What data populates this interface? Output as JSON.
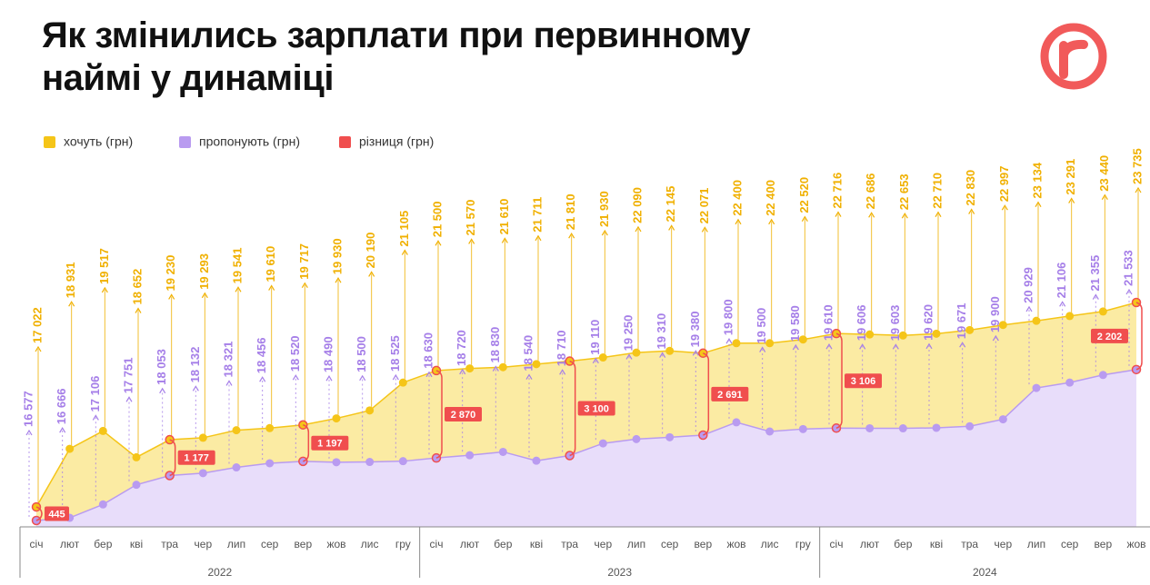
{
  "chart_data": {
    "type": "area",
    "title": "Як змінились зарплати при первинному наймі у динаміці",
    "groups": [
      {
        "label": "2022",
        "categories": [
          "січ",
          "лют",
          "бер",
          "кві",
          "тра",
          "чер",
          "лип",
          "сер",
          "вер",
          "жов",
          "лис",
          "гру"
        ]
      },
      {
        "label": "2023",
        "categories": [
          "січ",
          "лют",
          "бер",
          "кві",
          "тра",
          "чер",
          "лип",
          "сер",
          "вер",
          "жов",
          "лис",
          "гру"
        ]
      },
      {
        "label": "2024",
        "categories": [
          "січ",
          "лют",
          "бер",
          "кві",
          "тра",
          "чер",
          "лип",
          "сер",
          "вер",
          "жов"
        ]
      }
    ],
    "series": [
      {
        "name": "хочуть (грн)",
        "color": "#f5c518",
        "label_color": "#f0b000",
        "fill": "#fbeba3",
        "values": [
          17022,
          18931,
          19517,
          18652,
          19230,
          19293,
          19541,
          19610,
          19717,
          19930,
          20190,
          21105,
          21500,
          21570,
          21610,
          21711,
          21810,
          21930,
          22090,
          22145,
          22071,
          22400,
          22400,
          22520,
          22716,
          22686,
          22653,
          22710,
          22830,
          22997,
          23134,
          23291,
          23440,
          23735
        ],
        "value_labels": [
          "17 022",
          "18 931",
          "19 517",
          "18 652",
          "19 230",
          "19 293",
          "19 541",
          "19 610",
          "19 717",
          "19 930",
          "20 190",
          "21 105",
          "21 500",
          "21 570",
          "21 610",
          "21 711",
          "21 810",
          "21 930",
          "22 090",
          "22 145",
          "22 071",
          "22 400",
          "22 400",
          "22 520",
          "22 716",
          "22 686",
          "22 653",
          "22 710",
          "22 830",
          "22 997",
          "23 134",
          "23 291",
          "23 440",
          "23 735"
        ]
      },
      {
        "name": "пропонують (грн)",
        "color": "#b99bf0",
        "label_color": "#a57ee8",
        "fill": "#e8ddfa",
        "values": [
          16577,
          16666,
          17106,
          17751,
          18053,
          18132,
          18321,
          18456,
          18520,
          18490,
          18500,
          18525,
          18630,
          18720,
          18830,
          18540,
          18710,
          19110,
          19250,
          19310,
          19380,
          19800,
          19500,
          19580,
          19610,
          19606,
          19603,
          19620,
          19671,
          19900,
          20929,
          21106,
          21355,
          21533
        ],
        "value_labels": [
          "16 577",
          "16 666",
          "17 106",
          "17 751",
          "18 053",
          "18 132",
          "18 321",
          "18 456",
          "18 520",
          "18 490",
          "18 500",
          "18 525",
          "18 630",
          "18 720",
          "18 830",
          "18 540",
          "18 710",
          "19 110",
          "19 250",
          "19 310",
          "19 380",
          "19 800",
          "19 500",
          "19 580",
          "19 610",
          "19 606",
          "19 603",
          "19 620",
          "19 671",
          "19 900",
          "20 929",
          "21 106",
          "21 355",
          "21 533"
        ]
      },
      {
        "name": "різниця (грн)",
        "color": "#f04e4e",
        "values": [
          445,
          null,
          null,
          null,
          1177,
          null,
          null,
          null,
          1197,
          null,
          null,
          null,
          2870,
          null,
          null,
          null,
          3100,
          null,
          null,
          null,
          2691,
          null,
          null,
          null,
          3106,
          null,
          null,
          null,
          null,
          null,
          null,
          null,
          null,
          2202
        ],
        "value_labels": [
          "445",
          null,
          null,
          null,
          "1 177",
          null,
          null,
          null,
          "1 197",
          null,
          null,
          null,
          "2 870",
          null,
          null,
          null,
          "3 100",
          null,
          null,
          null,
          "2 691",
          null,
          null,
          null,
          "3 106",
          null,
          null,
          null,
          null,
          null,
          null,
          null,
          null,
          "2 202"
        ]
      }
    ]
  }
}
